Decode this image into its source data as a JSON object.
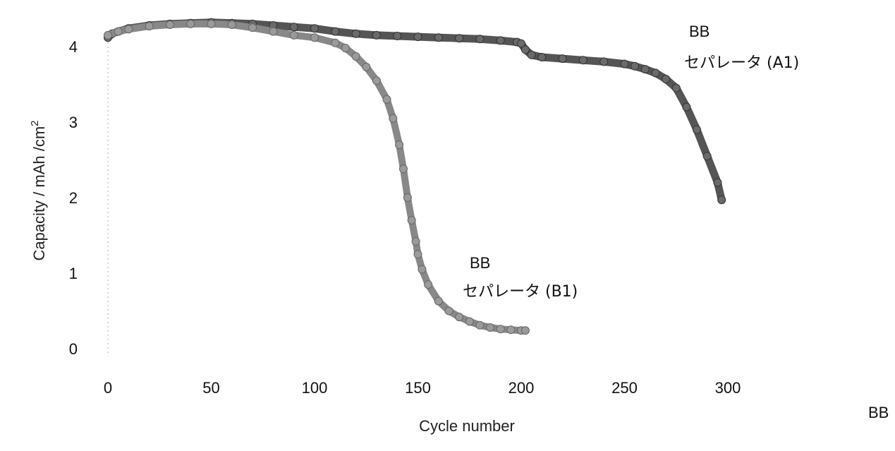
{
  "chart_data": {
    "type": "line",
    "xlabel": "Cycle number",
    "ylabel": "Capacity / mAh /cm2",
    "ylabel_parts": [
      "Capacity / mAh /cm",
      "2"
    ],
    "xlim": [
      0,
      300
    ],
    "ylim": [
      0,
      4.3
    ],
    "xticks": [
      0,
      50,
      100,
      150,
      200,
      250,
      300
    ],
    "yticks": [
      0,
      1,
      2,
      3,
      4
    ],
    "grid": false,
    "series": [
      {
        "name": "BB セパレータ (A1)",
        "label_line1": "BB",
        "label_line2": "セパレータ (A1)",
        "color": "#555555",
        "x": [
          0,
          2,
          5,
          10,
          20,
          30,
          40,
          50,
          60,
          70,
          80,
          90,
          100,
          110,
          120,
          130,
          140,
          150,
          160,
          170,
          180,
          190,
          198,
          200,
          202,
          205,
          210,
          220,
          230,
          240,
          250,
          255,
          260,
          265,
          270,
          275,
          280,
          285,
          290,
          295,
          297
        ],
        "y": [
          4.12,
          4.17,
          4.2,
          4.24,
          4.28,
          4.3,
          4.31,
          4.32,
          4.31,
          4.3,
          4.28,
          4.26,
          4.24,
          4.2,
          4.17,
          4.15,
          4.14,
          4.13,
          4.12,
          4.11,
          4.1,
          4.08,
          4.06,
          4.04,
          3.96,
          3.89,
          3.86,
          3.84,
          3.82,
          3.8,
          3.77,
          3.74,
          3.7,
          3.65,
          3.57,
          3.45,
          3.2,
          2.9,
          2.55,
          2.2,
          1.97
        ]
      },
      {
        "name": "BB セパレータ (B1)",
        "label_line1": "BB",
        "label_line2": "セパレータ (B1)",
        "color": "#888888",
        "x": [
          0,
          5,
          10,
          20,
          30,
          40,
          50,
          60,
          70,
          80,
          90,
          100,
          110,
          115,
          120,
          125,
          130,
          135,
          138,
          141,
          143,
          145,
          147,
          149,
          150,
          152,
          155,
          160,
          165,
          170,
          175,
          180,
          185,
          190,
          195,
          200,
          202
        ],
        "y": [
          4.15,
          4.2,
          4.23,
          4.27,
          4.29,
          4.3,
          4.3,
          4.29,
          4.25,
          4.2,
          4.15,
          4.12,
          4.05,
          3.98,
          3.87,
          3.73,
          3.55,
          3.3,
          3.05,
          2.7,
          2.38,
          2.0,
          1.7,
          1.42,
          1.25,
          1.05,
          0.85,
          0.63,
          0.5,
          0.42,
          0.36,
          0.31,
          0.28,
          0.26,
          0.25,
          0.24,
          0.24
        ]
      }
    ],
    "extra_text": "BB"
  }
}
